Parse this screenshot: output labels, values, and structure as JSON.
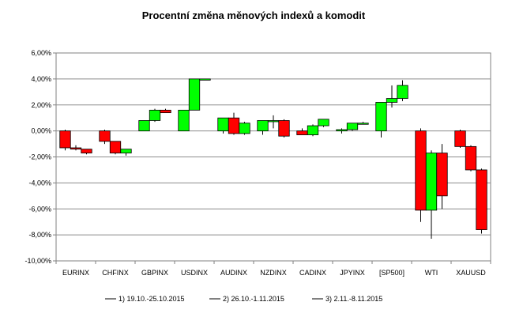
{
  "chart_data": {
    "type": "candlestick",
    "title": "Procentní změna měnových indexů a komodit",
    "xlabel": "",
    "ylabel": "",
    "ylim": [
      -10,
      6
    ],
    "y_ticks": [
      6,
      4,
      2,
      0,
      -2,
      -4,
      -6,
      -8,
      -10
    ],
    "y_tick_labels": [
      "6,00%",
      "4,00%",
      "2,00%",
      "0,00%",
      "-2,00%",
      "-4,00%",
      "-6,00%",
      "-8,00%",
      "-10,00%"
    ],
    "grid": "horizontal",
    "legend_position": "bottom",
    "up_color": "#00ff00",
    "down_color": "#ff0000",
    "wick_color": "#000000",
    "categories": [
      "EURINX",
      "CHFINX",
      "GBPINX",
      "USDINX",
      "AUDINX",
      "NZDINX",
      "CADINX",
      "JPYINX",
      "[SP500]",
      "WTI",
      "XAUUSD"
    ],
    "series": [
      {
        "name": "1) 19.10.-25.10.2015",
        "ohlc": [
          [
            0,
            0.1,
            -1.5,
            -1.3
          ],
          [
            0,
            0.1,
            -1.0,
            -0.8
          ],
          [
            0,
            0.8,
            0.0,
            0.8
          ],
          [
            0,
            1.6,
            0.0,
            1.6
          ],
          [
            0,
            1.0,
            -0.2,
            1.0
          ],
          [
            0,
            0.8,
            -0.3,
            0.8
          ],
          [
            0,
            0.2,
            -0.3,
            -0.3
          ],
          [
            0,
            0.2,
            -0.2,
            0.1
          ],
          [
            0,
            2.2,
            -0.5,
            2.2
          ],
          [
            0,
            0.2,
            -7.0,
            -6.1
          ],
          [
            0,
            0.1,
            -1.3,
            -1.2
          ]
        ]
      },
      {
        "name": "2) 26.10.-1.11.2015",
        "ohlc": [
          [
            -1.3,
            -1.1,
            -1.5,
            -1.4
          ],
          [
            -0.8,
            -0.8,
            -1.8,
            -1.7
          ],
          [
            0.8,
            1.7,
            0.7,
            1.6
          ],
          [
            1.6,
            4.0,
            1.6,
            4.0
          ],
          [
            1.0,
            1.4,
            -0.3,
            -0.2
          ],
          [
            0.8,
            1.2,
            0.2,
            0.8
          ],
          [
            -0.3,
            0.5,
            -0.4,
            0.4
          ],
          [
            0.1,
            0.6,
            0.0,
            0.6
          ],
          [
            2.2,
            3.5,
            1.8,
            2.5
          ],
          [
            -6.1,
            -1.5,
            -8.3,
            -1.7
          ],
          [
            -1.2,
            -1.1,
            -3.1,
            -3.0
          ]
        ]
      },
      {
        "name": "3) 2.11.-8.11.2015",
        "ohlc": [
          [
            -1.4,
            -1.4,
            -1.8,
            -1.7
          ],
          [
            -1.7,
            -1.4,
            -1.9,
            -1.4
          ],
          [
            1.6,
            1.7,
            1.4,
            1.4
          ],
          [
            4.0,
            4.0,
            4.0,
            4.0
          ],
          [
            -0.2,
            0.7,
            -0.3,
            0.6
          ],
          [
            0.8,
            0.9,
            -0.5,
            -0.4
          ],
          [
            0.4,
            0.9,
            0.3,
            0.9
          ],
          [
            0.6,
            0.7,
            0.5,
            0.6
          ],
          [
            2.5,
            3.9,
            2.3,
            3.5
          ],
          [
            -1.7,
            -1.0,
            -6.0,
            -5.0
          ],
          [
            -3.0,
            -2.9,
            -7.9,
            -7.6
          ]
        ]
      }
    ]
  }
}
